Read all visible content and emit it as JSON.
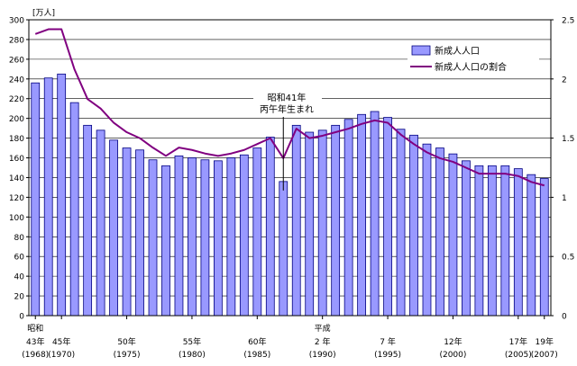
{
  "chart_data": {
    "type": "bar",
    "y_unit_label": "[万人]",
    "ylim": [
      0,
      300
    ],
    "y_ticks": [
      0,
      20,
      40,
      60,
      80,
      100,
      120,
      140,
      160,
      180,
      200,
      220,
      240,
      260,
      280,
      300
    ],
    "y2lim": [
      0,
      2.5
    ],
    "y2_ticks": [
      "0",
      "0.5",
      "1",
      "1.5",
      "2",
      "2.5"
    ],
    "y2_tick_values": [
      0,
      0.5,
      1,
      1.5,
      2,
      2.5
    ],
    "grid": true,
    "legend_position": "top-right",
    "colors": {
      "bar_fill": "#9999ff",
      "bar_stroke": "#000080",
      "line": "#800080",
      "grid": "#000000"
    },
    "categories": [
      "1968",
      "1969",
      "1970",
      "1971",
      "1972",
      "1973",
      "1974",
      "1975",
      "1976",
      "1977",
      "1978",
      "1979",
      "1980",
      "1981",
      "1982",
      "1983",
      "1984",
      "1985",
      "1986",
      "1987",
      "1988",
      "1989",
      "1990",
      "1991",
      "1992",
      "1993",
      "1994",
      "1995",
      "1996",
      "1997",
      "1998",
      "1999",
      "2000",
      "2001",
      "2002",
      "2003",
      "2004",
      "2005",
      "2006",
      "2007"
    ],
    "series": [
      {
        "name": "新成人人口",
        "kind": "bar",
        "axis": "left",
        "values": [
          236,
          241,
          245,
          216,
          193,
          188,
          178,
          170,
          168,
          158,
          152,
          162,
          160,
          158,
          157,
          160,
          163,
          170,
          181,
          136,
          193,
          186,
          188,
          193,
          199,
          204,
          207,
          201,
          189,
          183,
          174,
          170,
          164,
          157,
          152,
          152,
          152,
          149,
          143,
          139
        ]
      },
      {
        "name": "新成人人口の割合",
        "kind": "line",
        "axis": "right",
        "values": [
          2.38,
          2.42,
          2.42,
          2.08,
          1.83,
          1.75,
          1.63,
          1.55,
          1.5,
          1.42,
          1.35,
          1.42,
          1.4,
          1.37,
          1.35,
          1.37,
          1.4,
          1.45,
          1.5,
          1.33,
          1.58,
          1.5,
          1.52,
          1.55,
          1.58,
          1.62,
          1.65,
          1.63,
          1.53,
          1.45,
          1.38,
          1.33,
          1.3,
          1.25,
          1.2,
          1.2,
          1.2,
          1.18,
          1.13,
          1.1
        ]
      }
    ],
    "x_labels": [
      {
        "index": 0,
        "era": "昭和",
        "year": "43年",
        "western": "(1968)"
      },
      {
        "index": 2,
        "year": "45年",
        "western": "(1970)"
      },
      {
        "index": 7,
        "year": "50年",
        "western": "(1975)"
      },
      {
        "index": 12,
        "year": "55年",
        "western": "(1980)"
      },
      {
        "index": 17,
        "year": "60年",
        "western": "(1985)"
      },
      {
        "index": 22,
        "era": "平成",
        "year": "2 年",
        "western": "(1990)"
      },
      {
        "index": 27,
        "year": "7 年",
        "western": "(1995)"
      },
      {
        "index": 32,
        "year": "12年",
        "western": "(2000)"
      },
      {
        "index": 37,
        "year": "17年",
        "western": "(2005)"
      },
      {
        "index": 39,
        "year": "19年",
        "western": "(2007)"
      }
    ],
    "annotation": {
      "lines": [
        "昭和41年",
        "丙午年生まれ"
      ],
      "target_index": 19
    }
  }
}
